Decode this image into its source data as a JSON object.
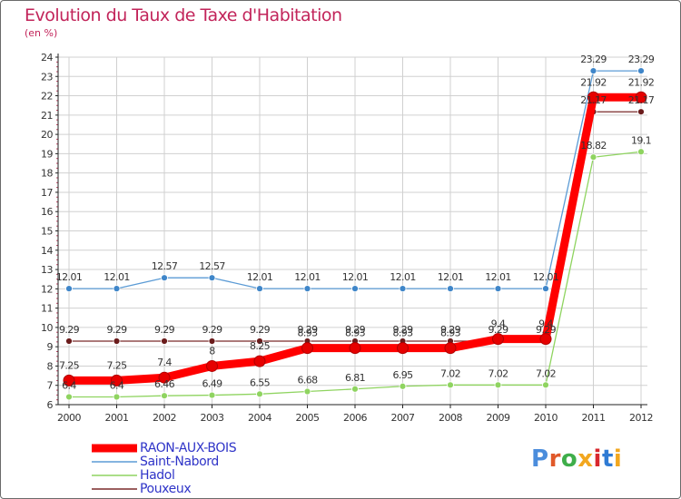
{
  "header": {
    "title": "Evolution du Taux de Taxe d'Habitation",
    "subtitle": "(en %)"
  },
  "logo": {
    "text": "Proxiti",
    "letter_colors": [
      "#4b8ddc",
      "#e0592a",
      "#3fae4a",
      "#f2a71f",
      "#d9272e",
      "#2f7bd4",
      "#f2a71f"
    ]
  },
  "colors": {
    "grid": "#d0d0d0",
    "axis": "#222222",
    "label_text": "#333333"
  },
  "chart_data": {
    "type": "line",
    "title": "Evolution du Taux de Taxe d'Habitation",
    "subtitle": "(en %)",
    "xlabel": "",
    "ylabel": "",
    "categories": [
      "2000",
      "2001",
      "2002",
      "2003",
      "2004",
      "2005",
      "2006",
      "2007",
      "2008",
      "2009",
      "2010",
      "2011",
      "2012"
    ],
    "ylim": [
      6,
      24
    ],
    "yticks": [
      6,
      7,
      8,
      9,
      10,
      11,
      12,
      13,
      14,
      15,
      16,
      17,
      18,
      19,
      20,
      21,
      22,
      23,
      24
    ],
    "grid": true,
    "legend_position": "bottom-left",
    "series": [
      {
        "name": "RAON-AUX-BOIS",
        "color": "#ff0000",
        "values": [
          7.25,
          7.25,
          7.4,
          8,
          8.25,
          8.93,
          8.93,
          8.93,
          8.93,
          9.4,
          9.4,
          21.92,
          21.92
        ],
        "labels": [
          "7.25",
          "7.25",
          "7.4",
          "8",
          "8.25",
          "8.93",
          "8.93",
          "8.93",
          "8.93",
          "9.4",
          "9.4",
          "21.92",
          "21.92"
        ]
      },
      {
        "name": "Saint-Nabord",
        "color": "#5b9bd5",
        "values": [
          12.01,
          12.01,
          12.57,
          12.57,
          12.01,
          12.01,
          12.01,
          12.01,
          12.01,
          12.01,
          12.01,
          23.29,
          23.29
        ],
        "labels": [
          "12.01",
          "12.01",
          "12.57",
          "12.57",
          "12.01",
          "12.01",
          "12.01",
          "12.01",
          "12.01",
          "12.01",
          "12.01",
          "23.29",
          "23.29"
        ]
      },
      {
        "name": "Hadol",
        "color": "#8fd460",
        "values": [
          6.4,
          6.4,
          6.46,
          6.49,
          6.55,
          6.68,
          6.81,
          6.95,
          7.02,
          7.02,
          7.02,
          18.82,
          19.1
        ],
        "labels": [
          "6.4",
          "6.4",
          "6.46",
          "6.49",
          "6.55",
          "6.68",
          "6.81",
          "6.95",
          "7.02",
          "7.02",
          "7.02",
          "18.82",
          "19.1"
        ]
      },
      {
        "name": "Pouxeux",
        "color": "#7a2a2a",
        "values": [
          9.29,
          9.29,
          9.29,
          9.29,
          9.29,
          9.29,
          9.29,
          9.29,
          9.29,
          9.29,
          9.29,
          21.17,
          21.17
        ],
        "labels": [
          "9.29",
          "9.29",
          "9.29",
          "9.29",
          "9.29",
          "9.29",
          "9.29",
          "9.29",
          "9.29",
          "9.29",
          "9.29",
          "21.17",
          "21.17"
        ]
      }
    ]
  }
}
